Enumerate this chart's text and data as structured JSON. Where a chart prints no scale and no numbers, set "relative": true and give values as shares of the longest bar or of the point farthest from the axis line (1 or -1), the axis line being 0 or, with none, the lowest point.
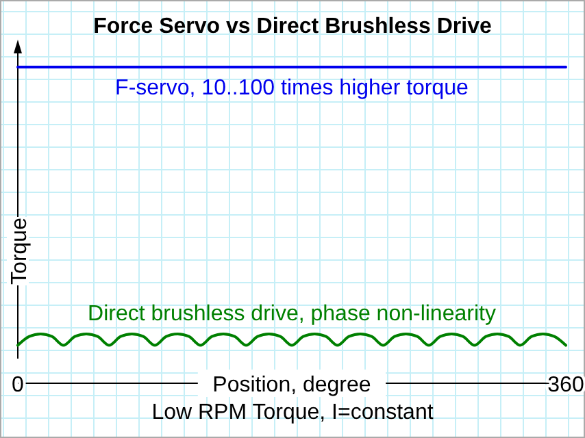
{
  "chart_data": {
    "type": "line",
    "title": "Force Servo vs Direct Brushless Drive",
    "xlabel": "Position, degree",
    "ylabel": "Torque",
    "relative": true,
    "xlim": [
      0,
      360
    ],
    "xticks": [
      0,
      360
    ],
    "annotations": [
      "Low RPM Torque, I=constant"
    ],
    "series": [
      {
        "name": "F-servo, 10..100 times higher torque",
        "color": "#0000ee",
        "x": [
          0,
          360
        ],
        "values": [
          1,
          1
        ]
      },
      {
        "name": "Direct brushless drive, phase non-linearity",
        "color": "#008000",
        "x": [
          0,
          7.5,
          15,
          22.5,
          30,
          37.5,
          45,
          52.5,
          60,
          67.5,
          75,
          82.5,
          90,
          97.5,
          105,
          112.5,
          120,
          127.5,
          135,
          142.5,
          150,
          157.5,
          165,
          172.5,
          180,
          187.5,
          195,
          202.5,
          210,
          217.5,
          225,
          232.5,
          240,
          247.5,
          255,
          262.5,
          270,
          277.5,
          285,
          292.5,
          300,
          307.5,
          315,
          322.5,
          330,
          337.5,
          345,
          352.5,
          360
        ],
        "values": [
          0.12,
          0.148,
          0.156,
          0.148,
          0.12,
          0.148,
          0.156,
          0.148,
          0.12,
          0.148,
          0.156,
          0.148,
          0.12,
          0.148,
          0.156,
          0.148,
          0.12,
          0.148,
          0.156,
          0.148,
          0.12,
          0.148,
          0.156,
          0.148,
          0.12,
          0.148,
          0.156,
          0.148,
          0.12,
          0.148,
          0.156,
          0.148,
          0.12,
          0.148,
          0.156,
          0.148,
          0.12,
          0.148,
          0.156,
          0.148,
          0.12,
          0.148,
          0.156,
          0.148,
          0.12,
          0.148,
          0.156,
          0.148,
          0.12
        ]
      }
    ]
  }
}
